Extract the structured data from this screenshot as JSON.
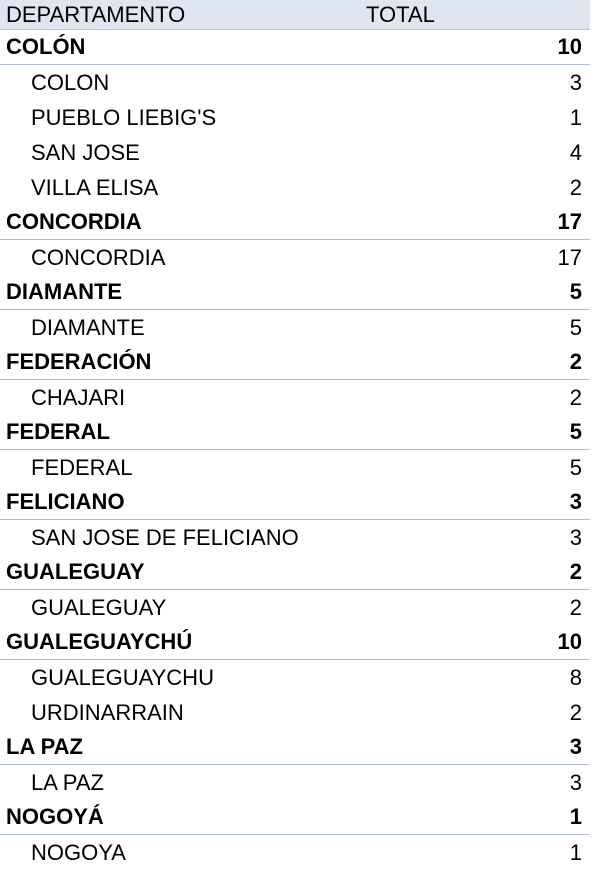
{
  "header": {
    "col_departamento": "DEPARTAMENTO",
    "col_total": "TOTAL"
  },
  "groups": [
    {
      "name": "COLÓN",
      "total": "10",
      "items": [
        {
          "name": "COLON",
          "total": "3"
        },
        {
          "name": "PUEBLO LIEBIG'S",
          "total": "1"
        },
        {
          "name": "SAN JOSE",
          "total": "4"
        },
        {
          "name": "VILLA ELISA",
          "total": "2"
        }
      ]
    },
    {
      "name": "CONCORDIA",
      "total": "17",
      "items": [
        {
          "name": "CONCORDIA",
          "total": "17"
        }
      ]
    },
    {
      "name": "DIAMANTE",
      "total": "5",
      "items": [
        {
          "name": "DIAMANTE",
          "total": "5"
        }
      ]
    },
    {
      "name": "FEDERACIÓN",
      "total": "2",
      "items": [
        {
          "name": "CHAJARI",
          "total": "2"
        }
      ]
    },
    {
      "name": "FEDERAL",
      "total": "5",
      "items": [
        {
          "name": "FEDERAL",
          "total": "5"
        }
      ]
    },
    {
      "name": "FELICIANO",
      "total": "3",
      "items": [
        {
          "name": "SAN JOSE DE FELICIANO",
          "total": "3"
        }
      ]
    },
    {
      "name": "GUALEGUAY",
      "total": "2",
      "items": [
        {
          "name": "GUALEGUAY",
          "total": "2"
        }
      ]
    },
    {
      "name": "GUALEGUAYCHÚ",
      "total": "10",
      "items": [
        {
          "name": "GUALEGUAYCHU",
          "total": "8"
        },
        {
          "name": "URDINARRAIN",
          "total": "2"
        }
      ]
    },
    {
      "name": "LA PAZ",
      "total": "3",
      "items": [
        {
          "name": "LA PAZ",
          "total": "3"
        }
      ]
    },
    {
      "name": "NOGOYÁ",
      "total": "1",
      "items": [
        {
          "name": "NOGOYA",
          "total": "1"
        }
      ]
    }
  ]
}
